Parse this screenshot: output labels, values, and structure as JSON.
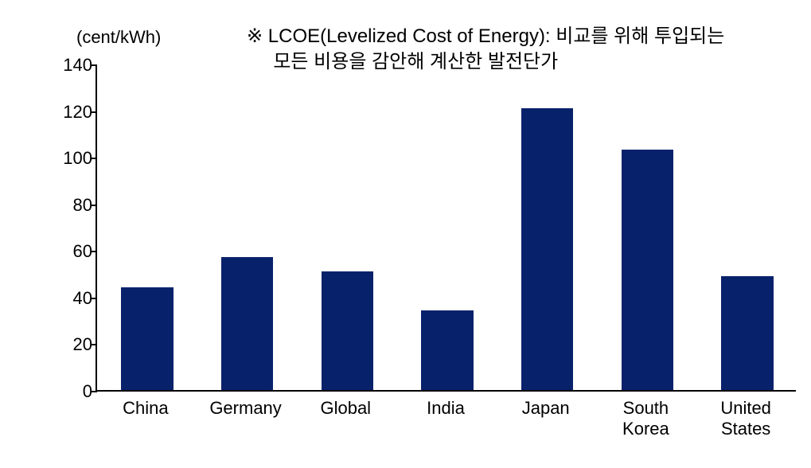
{
  "chart": {
    "type": "bar",
    "unit_label": "(cent/kWh)",
    "annotation": "※ LCOE(Levelized Cost of Energy): 비교를 위해 투입되는\n     모든 비용을 감안해 계산한 발전단가",
    "categories": [
      "China",
      "Germany",
      "Global",
      "India",
      "Japan",
      "South\nKorea",
      "United\nStates"
    ],
    "values": [
      44,
      57,
      51,
      34,
      121,
      103,
      49
    ],
    "bar_color": "#08216b",
    "bar_width": 0.52,
    "background_color": "#ffffff",
    "axis_color": "#000000",
    "ylim": [
      0,
      140
    ],
    "ytick_step": 20,
    "yticks": [
      0,
      20,
      40,
      60,
      80,
      100,
      120,
      140
    ],
    "label_fontsize": 22,
    "annotation_fontsize": 24,
    "text_color": "#000000"
  }
}
